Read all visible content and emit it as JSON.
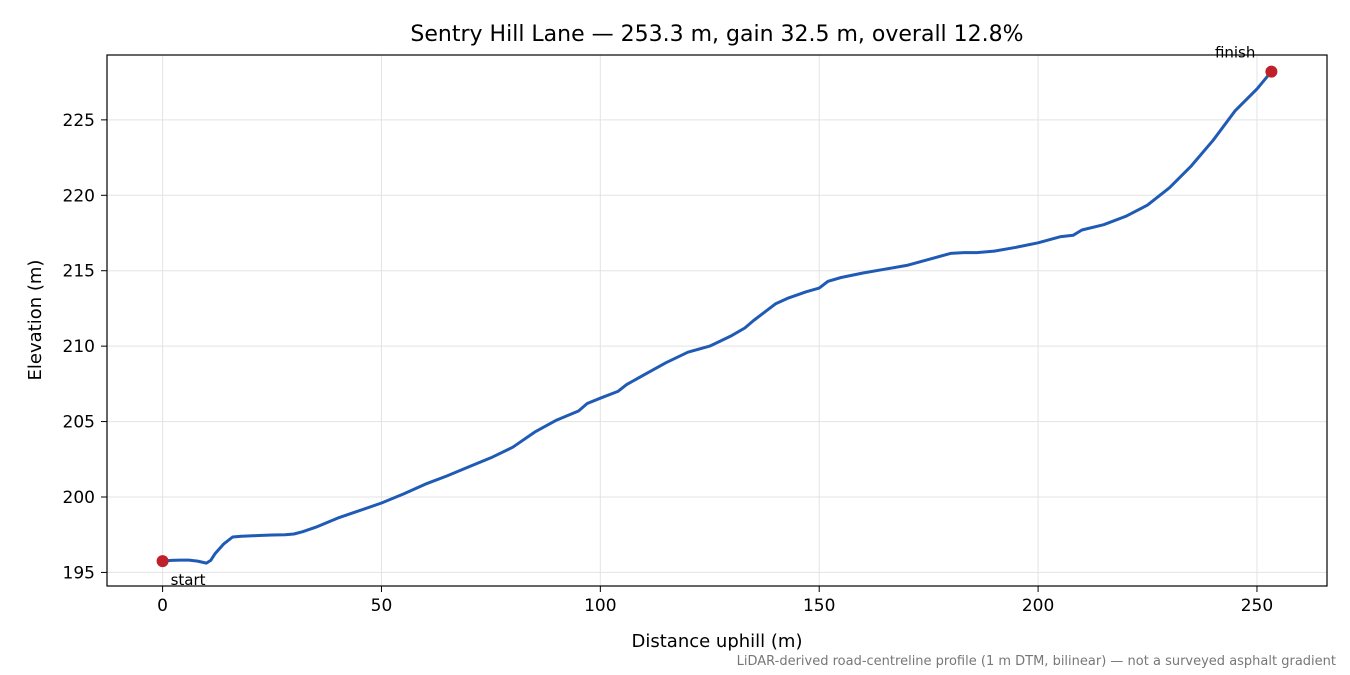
{
  "chart_data": {
    "type": "line",
    "title": "Sentry Hill Lane — 253.3 m, gain 32.5 m, overall 12.8%",
    "xlabel": "Distance uphill (m)",
    "ylabel": "Elevation (m)",
    "xlim": [
      -12.7,
      266.0
    ],
    "ylim": [
      194.1,
      229.3
    ],
    "xticks": [
      0,
      50,
      100,
      150,
      200,
      250
    ],
    "yticks": [
      195,
      200,
      205,
      210,
      215,
      220,
      225
    ],
    "xtick_labels": [
      "0",
      "50",
      "100",
      "150",
      "200",
      "250"
    ],
    "ytick_labels": [
      "195",
      "200",
      "205",
      "210",
      "215",
      "220",
      "225"
    ],
    "grid": true,
    "line_color": "#1f5bb5",
    "marker_color": "#c0202a",
    "series": [
      {
        "x": [
          0,
          2,
          4,
          6,
          8,
          10,
          11,
          12,
          14,
          16,
          18,
          20,
          22,
          25,
          28,
          30,
          32,
          35,
          40,
          45,
          50,
          55,
          60,
          65,
          70,
          75,
          80,
          85,
          90,
          95,
          97,
          100,
          104,
          106,
          110,
          115,
          120,
          125,
          130,
          133,
          135,
          140,
          143,
          147,
          150,
          152,
          155,
          160,
          165,
          170,
          175,
          180,
          183,
          186,
          190,
          195,
          200,
          205,
          208,
          210,
          215,
          220,
          225,
          230,
          235,
          240,
          245,
          250,
          253.3
        ],
        "y": [
          195.75,
          195.8,
          195.82,
          195.82,
          195.75,
          195.62,
          195.8,
          196.25,
          196.9,
          197.35,
          197.4,
          197.42,
          197.45,
          197.48,
          197.5,
          197.55,
          197.7,
          198.0,
          198.6,
          199.1,
          199.6,
          200.2,
          200.85,
          201.4,
          202.0,
          202.6,
          203.3,
          204.3,
          205.1,
          205.7,
          206.2,
          206.55,
          207.0,
          207.45,
          208.1,
          208.9,
          209.6,
          210.0,
          210.7,
          211.2,
          211.7,
          212.8,
          213.2,
          213.6,
          213.85,
          214.3,
          214.55,
          214.85,
          215.1,
          215.35,
          215.75,
          216.15,
          216.2,
          216.2,
          216.3,
          216.55,
          216.85,
          217.25,
          217.35,
          217.7,
          218.05,
          218.6,
          219.35,
          220.5,
          221.95,
          223.65,
          225.6,
          227.05,
          228.2
        ]
      }
    ],
    "annotations": [
      {
        "text": "start",
        "x": 0,
        "y": 195.75
      },
      {
        "text": "finish",
        "x": 253.3,
        "y": 228.2
      }
    ],
    "footnote": "LiDAR-derived road-centreline profile (1 m DTM, bilinear) — not a surveyed asphalt gradient"
  }
}
